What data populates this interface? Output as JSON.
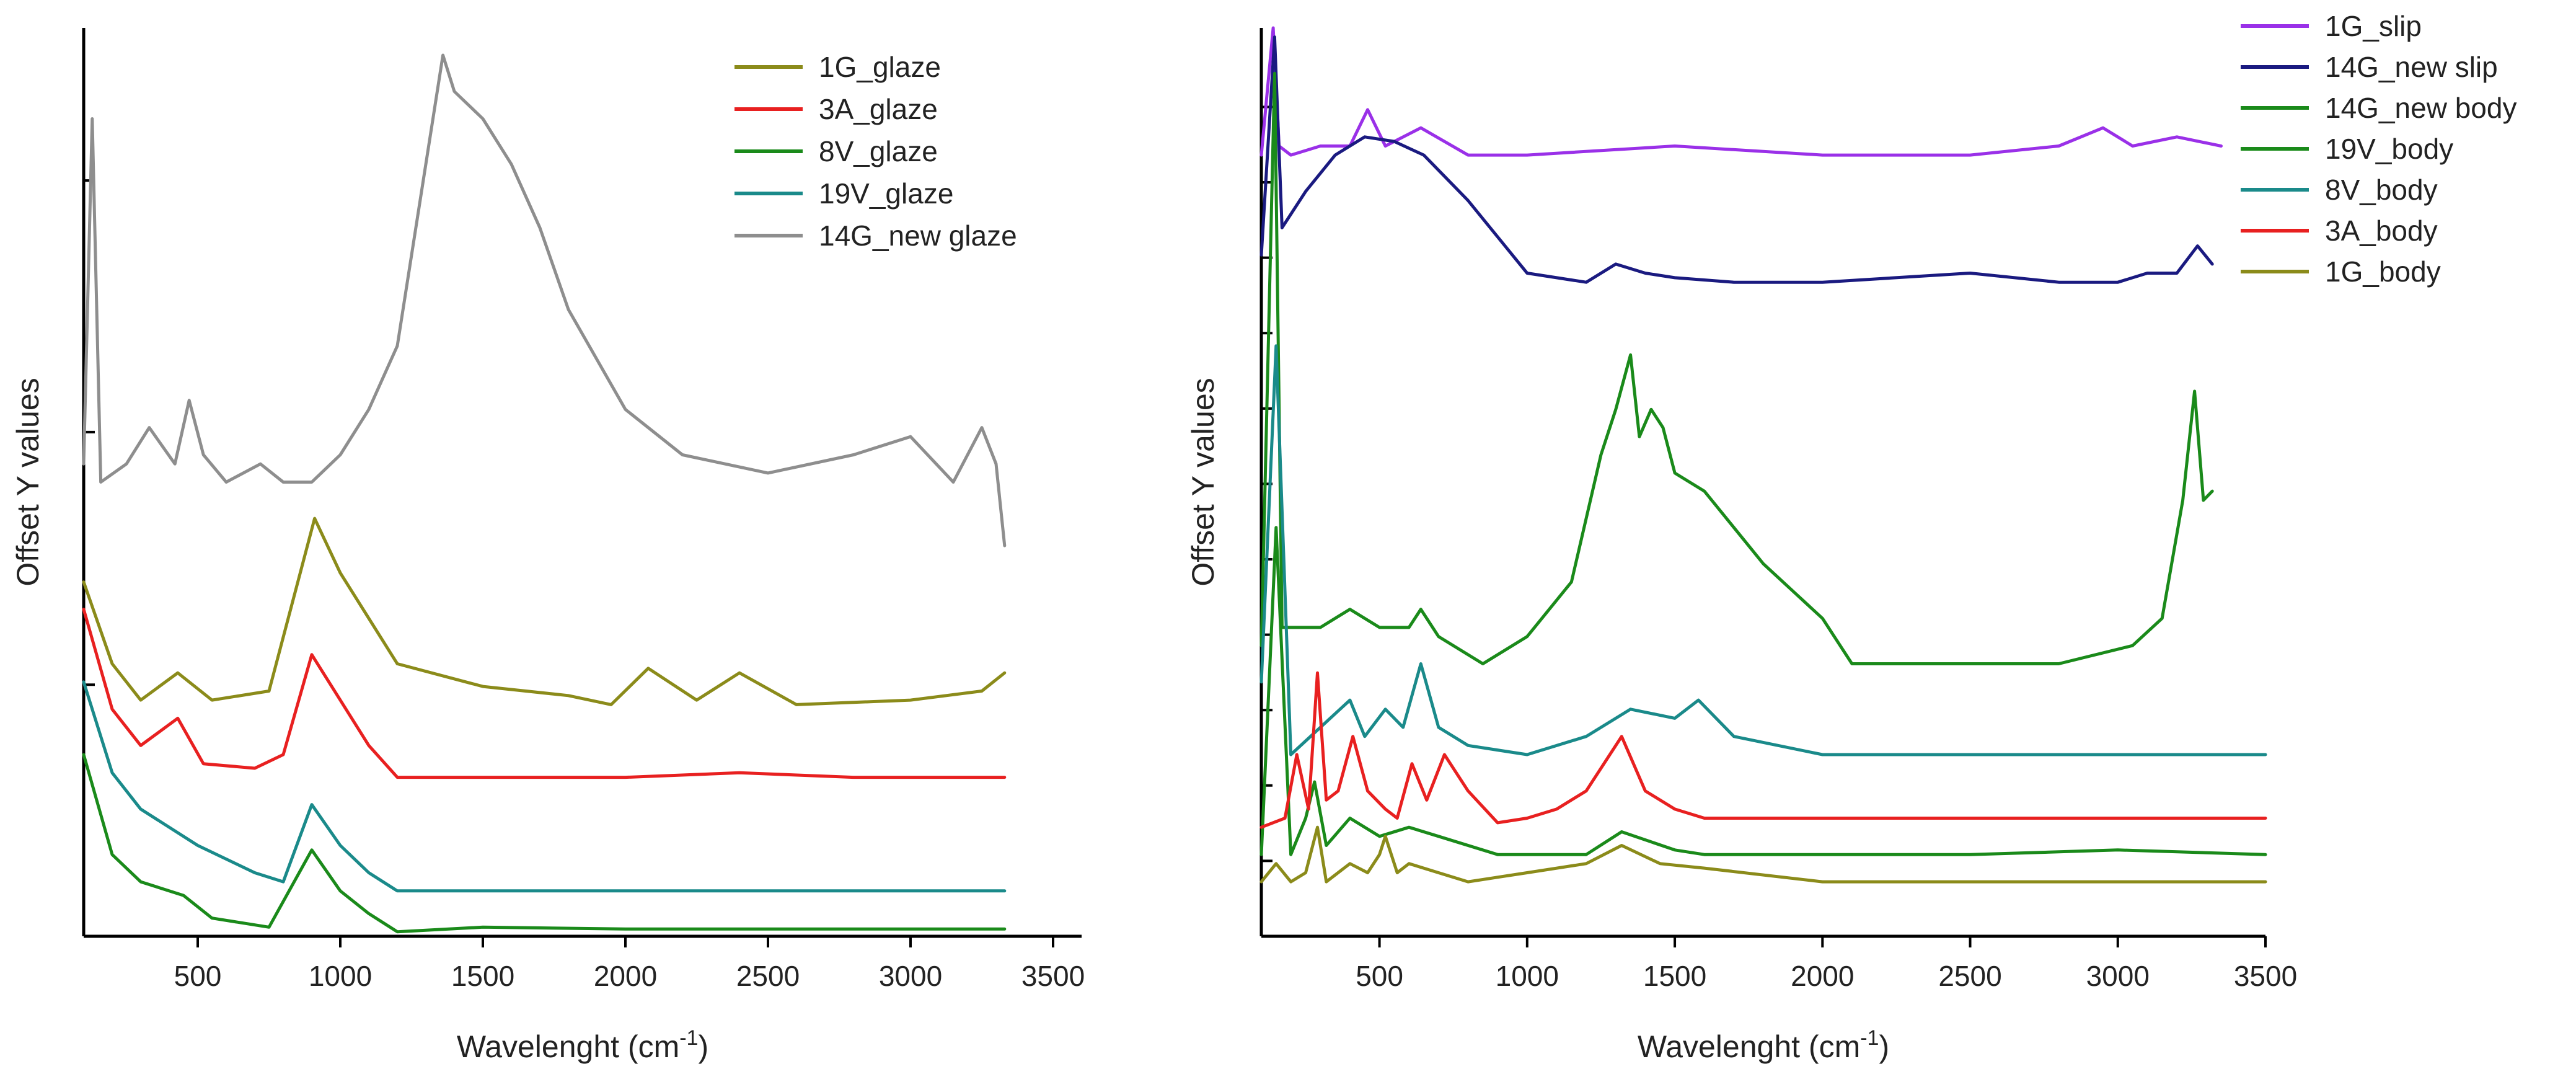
{
  "chart_data": [
    {
      "type": "line",
      "panel": "left",
      "title": "",
      "xlabel_main": "Wavelenght (cm",
      "xlabel_sup": "-1",
      "xlabel_tail": ")",
      "ylabel": "Offset Y values",
      "xlim": [
        100,
        3600
      ],
      "ylim": [
        0,
        10
      ],
      "x_ticks": [
        500,
        1000,
        1500,
        2000,
        2500,
        3000,
        3500
      ],
      "x_tick_labels": [
        "500",
        "1000",
        "1500",
        "2000",
        "2500",
        "3000",
        "3500"
      ],
      "legend_position": "top-right",
      "series": [
        {
          "name": "1G_glaze",
          "color": "#8b8b1a",
          "x": [
            100,
            200,
            300,
            430,
            550,
            750,
            910,
            1000,
            1200,
            1500,
            1800,
            1950,
            2080,
            2250,
            2400,
            2600,
            3000,
            3250,
            3330
          ],
          "y": [
            3.9,
            3.0,
            2.6,
            2.9,
            2.6,
            2.7,
            4.6,
            4.0,
            3.0,
            2.75,
            2.65,
            2.55,
            2.95,
            2.6,
            2.9,
            2.55,
            2.6,
            2.7,
            2.9
          ]
        },
        {
          "name": "3A_glaze",
          "color": "#e82020",
          "x": [
            100,
            200,
            300,
            430,
            520,
            700,
            800,
            900,
            1000,
            1100,
            1200,
            1500,
            2000,
            2400,
            2800,
            3330
          ],
          "y": [
            3.6,
            2.5,
            2.1,
            2.4,
            1.9,
            1.85,
            2.0,
            3.1,
            2.6,
            2.1,
            1.75,
            1.75,
            1.75,
            1.8,
            1.75,
            1.75
          ]
        },
        {
          "name": "8V_glaze",
          "color": "#1a8a1a",
          "x": [
            100,
            200,
            300,
            450,
            550,
            750,
            900,
            1000,
            1100,
            1200,
            1500,
            2000,
            3330
          ],
          "y": [
            2.0,
            0.9,
            0.6,
            0.45,
            0.2,
            0.1,
            0.95,
            0.5,
            0.25,
            0.05,
            0.1,
            0.08,
            0.08
          ]
        },
        {
          "name": "19V_glaze",
          "color": "#1a8a8a",
          "x": [
            100,
            200,
            300,
            500,
            700,
            800,
            900,
            1000,
            1100,
            1200,
            1500,
            2000,
            3330
          ],
          "y": [
            2.8,
            1.8,
            1.4,
            1.0,
            0.7,
            0.6,
            1.45,
            1.0,
            0.7,
            0.5,
            0.5,
            0.5,
            0.5
          ]
        },
        {
          "name": "14G_new glaze",
          "color": "#8e8e8e",
          "x": [
            100,
            130,
            160,
            250,
            330,
            420,
            470,
            520,
            600,
            720,
            800,
            900,
            1000,
            1100,
            1200,
            1300,
            1360,
            1400,
            1500,
            1600,
            1700,
            1800,
            2000,
            2200,
            2500,
            2800,
            3000,
            3150,
            3250,
            3300,
            3330
          ],
          "y": [
            5.2,
            9.0,
            5.0,
            5.2,
            5.6,
            5.2,
            5.9,
            5.3,
            5.0,
            5.2,
            5.0,
            5.0,
            5.3,
            5.8,
            6.5,
            8.5,
            9.7,
            9.3,
            9.0,
            8.5,
            7.8,
            6.9,
            5.8,
            5.3,
            5.1,
            5.3,
            5.5,
            5.0,
            5.6,
            5.2,
            4.3
          ]
        }
      ]
    },
    {
      "type": "line",
      "panel": "right",
      "title": "",
      "xlabel_main": "Wavelenght (cm",
      "xlabel_sup": "-1",
      "xlabel_tail": ")",
      "ylabel": "Offset Y values",
      "xlim": [
        100,
        3500
      ],
      "ylim": [
        0,
        10
      ],
      "x_ticks": [
        500,
        1000,
        1500,
        2000,
        2500,
        3000,
        3500
      ],
      "x_tick_labels": [
        "500",
        "1000",
        "1500",
        "2000",
        "2500",
        "3000",
        "3500"
      ],
      "legend_position": "top-right",
      "series": [
        {
          "name": "1G_slip",
          "color": "#9a30e8",
          "x": [
            100,
            140,
            160,
            200,
            300,
            400,
            460,
            520,
            640,
            800,
            1000,
            1500,
            2000,
            2500,
            2800,
            2950,
            3050,
            3200,
            3350
          ],
          "y": [
            8.6,
            10.0,
            8.7,
            8.6,
            8.7,
            8.7,
            9.1,
            8.7,
            8.9,
            8.6,
            8.6,
            8.7,
            8.6,
            8.6,
            8.7,
            8.9,
            8.7,
            8.8,
            8.7
          ]
        },
        {
          "name": "14G_new slip",
          "color": "#1a1a80",
          "x": [
            100,
            145,
            170,
            250,
            350,
            450,
            550,
            650,
            800,
            1000,
            1200,
            1300,
            1400,
            1500,
            1700,
            2000,
            2500,
            2800,
            3000,
            3100,
            3200,
            3270,
            3320
          ],
          "y": [
            7.5,
            9.9,
            7.8,
            8.2,
            8.6,
            8.8,
            8.75,
            8.6,
            8.1,
            7.3,
            7.2,
            7.4,
            7.3,
            7.25,
            7.2,
            7.2,
            7.3,
            7.2,
            7.2,
            7.3,
            7.3,
            7.6,
            7.4
          ]
        },
        {
          "name": "14G_new body",
          "color": "#1a8a1a",
          "x": [
            100,
            145,
            170,
            300,
            400,
            500,
            600,
            640,
            700,
            850,
            1000,
            1150,
            1250,
            1300,
            1350,
            1380,
            1420,
            1460,
            1500,
            1600,
            1800,
            1900,
            2000,
            2100,
            2500,
            2800,
            3050,
            3150,
            3220,
            3260,
            3290,
            3320
          ],
          "y": [
            3.2,
            9.5,
            3.4,
            3.4,
            3.6,
            3.4,
            3.4,
            3.6,
            3.3,
            3.0,
            3.3,
            3.9,
            5.3,
            5.8,
            6.4,
            5.5,
            5.8,
            5.6,
            5.1,
            4.9,
            4.1,
            3.8,
            3.5,
            3.0,
            3.0,
            3.0,
            3.2,
            3.5,
            4.8,
            6.0,
            4.8,
            4.9
          ]
        },
        {
          "name": "19V_body",
          "color": "#1a8a1a",
          "x": [
            100,
            150,
            200,
            250,
            280,
            320,
            400,
            500,
            600,
            700,
            900,
            1000,
            1200,
            1320,
            1500,
            1600,
            2000,
            2500,
            3000,
            3500
          ],
          "y": [
            0.9,
            4.5,
            0.9,
            1.3,
            1.7,
            1.0,
            1.3,
            1.1,
            1.2,
            1.1,
            0.9,
            0.9,
            0.9,
            1.15,
            0.95,
            0.9,
            0.9,
            0.9,
            0.95,
            0.9
          ]
        },
        {
          "name": "8V_body",
          "color": "#1a8a8a",
          "x": [
            100,
            150,
            200,
            300,
            400,
            450,
            520,
            580,
            640,
            700,
            800,
            1000,
            1200,
            1350,
            1500,
            1580,
            1700,
            2000,
            2500,
            3000,
            3500
          ],
          "y": [
            2.8,
            6.5,
            2.0,
            2.3,
            2.6,
            2.2,
            2.5,
            2.3,
            3.0,
            2.3,
            2.1,
            2.0,
            2.2,
            2.5,
            2.4,
            2.6,
            2.2,
            2.0,
            2.0,
            2.0,
            2.0
          ]
        },
        {
          "name": "3A_body",
          "color": "#e82020",
          "x": [
            100,
            180,
            220,
            260,
            290,
            320,
            360,
            410,
            460,
            520,
            560,
            610,
            660,
            720,
            800,
            900,
            1000,
            1100,
            1200,
            1320,
            1400,
            1500,
            1600,
            2000,
            2500,
            3000,
            3500
          ],
          "y": [
            1.2,
            1.3,
            2.0,
            1.4,
            2.9,
            1.5,
            1.6,
            2.2,
            1.6,
            1.4,
            1.3,
            1.9,
            1.5,
            2.0,
            1.6,
            1.25,
            1.3,
            1.4,
            1.6,
            2.2,
            1.6,
            1.4,
            1.3,
            1.3,
            1.3,
            1.3,
            1.3
          ]
        },
        {
          "name": "1G_body",
          "color": "#8b8b1a",
          "x": [
            100,
            150,
            200,
            250,
            290,
            320,
            400,
            460,
            500,
            520,
            560,
            600,
            700,
            800,
            1000,
            1200,
            1320,
            1450,
            1600,
            2000,
            2500,
            3000,
            3500
          ],
          "y": [
            0.6,
            0.8,
            0.6,
            0.7,
            1.2,
            0.6,
            0.8,
            0.7,
            0.9,
            1.1,
            0.7,
            0.8,
            0.7,
            0.6,
            0.7,
            0.8,
            1.0,
            0.8,
            0.75,
            0.6,
            0.6,
            0.6,
            0.6
          ]
        }
      ]
    }
  ]
}
